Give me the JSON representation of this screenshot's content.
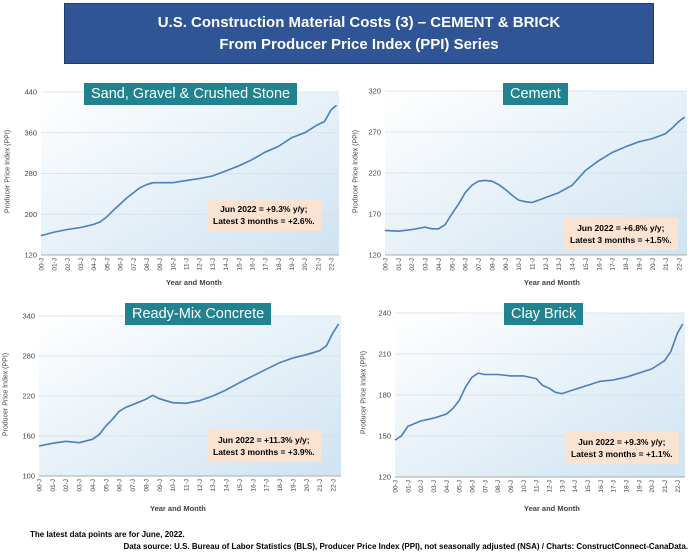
{
  "header": {
    "line1": "U.S. Construction Material Costs (3) – CEMENT & BRICK",
    "line2": "From Producer Price Index (PPI) Series"
  },
  "colors": {
    "banner": "#2f5597",
    "title_box": "#21838f",
    "note_box": "#fbe3d2",
    "line": "#4a7ebf"
  },
  "x_ticks": [
    "00-J",
    "01-J",
    "02-J",
    "03-J",
    "04-J",
    "05-J",
    "06-J",
    "07-J",
    "08-J",
    "09-J",
    "10-J",
    "11-J",
    "12-J",
    "13-J",
    "14-J",
    "15-J",
    "16-J",
    "17-J",
    "18-J",
    "19-J",
    "20-J",
    "21-J",
    "22-J"
  ],
  "chart_data": [
    {
      "type": "line",
      "title": "Sand, Gravel & Crushed Stone",
      "ylabel": "Producer Price Index (PPI)",
      "xlabel": "Year and Month",
      "ylim": [
        120,
        440
      ],
      "yticks": [
        "120",
        "200",
        "280",
        "360",
        "440"
      ],
      "grid": true,
      "note": [
        "Jun 2022 = +9.3% y/y;",
        "Latest 3 months = +2.6%."
      ],
      "x": [
        2000.0,
        2001.0,
        2002.0,
        2003.0,
        2004.0,
        2004.5,
        2005.0,
        2005.5,
        2006.0,
        2006.5,
        2007.0,
        2007.5,
        2008.0,
        2008.5,
        2009.0,
        2009.5,
        2010.0,
        2011.0,
        2012.0,
        2013.0,
        2014.0,
        2015.0,
        2016.0,
        2017.0,
        2018.0,
        2019.0,
        2020.0,
        2021.0,
        2021.5,
        2022.0,
        2022.42
      ],
      "values": [
        158,
        165,
        170,
        174,
        180,
        185,
        195,
        208,
        220,
        232,
        242,
        252,
        258,
        262,
        262,
        262,
        262,
        266,
        270,
        275,
        285,
        295,
        307,
        322,
        333,
        350,
        360,
        376,
        382,
        405,
        414
      ]
    },
    {
      "type": "line",
      "title": "Cement",
      "ylabel": "Producer Price Index (PPI)",
      "xlabel": "Year and Month",
      "ylim": [
        120,
        320
      ],
      "yticks": [
        "120",
        "170",
        "220",
        "270",
        "320"
      ],
      "grid": true,
      "note": [
        "Jun 2022 = +6.8% y/y;",
        "Latest 3 months = +1.5%."
      ],
      "x": [
        2000.0,
        2001.0,
        2002.0,
        2003.0,
        2003.5,
        2004.0,
        2004.5,
        2005.0,
        2005.5,
        2006.0,
        2006.5,
        2007.0,
        2007.5,
        2008.0,
        2008.5,
        2009.0,
        2009.5,
        2010.0,
        2010.5,
        2011.0,
        2011.5,
        2012.0,
        2013.0,
        2014.0,
        2015.0,
        2016.0,
        2017.0,
        2018.0,
        2019.0,
        2020.0,
        2021.0,
        2021.5,
        2022.0,
        2022.42
      ],
      "values": [
        150,
        149,
        151,
        154,
        152,
        152,
        157,
        170,
        182,
        196,
        205,
        210,
        211,
        210,
        206,
        200,
        193,
        187,
        185,
        184,
        187,
        190,
        196,
        205,
        223,
        235,
        245,
        252,
        258,
        262,
        268,
        275,
        283,
        288
      ]
    },
    {
      "type": "line",
      "title": "Ready-Mix Concrete",
      "ylabel": "Producer Price Index (PPI)",
      "xlabel": "Year and Month",
      "ylim": [
        100,
        340
      ],
      "yticks": [
        "100",
        "160",
        "220",
        "280",
        "340"
      ],
      "grid": true,
      "note": [
        "Jun 2022 = +11.3% y/y;",
        "Latest 3 months = +3.9%."
      ],
      "x": [
        2000.0,
        2001.0,
        2002.0,
        2003.0,
        2004.0,
        2004.5,
        2005.0,
        2005.5,
        2006.0,
        2006.5,
        2007.0,
        2007.5,
        2008.0,
        2008.5,
        2009.0,
        2009.5,
        2010.0,
        2011.0,
        2012.0,
        2013.0,
        2014.0,
        2015.0,
        2016.0,
        2017.0,
        2018.0,
        2019.0,
        2020.0,
        2021.0,
        2021.5,
        2022.0,
        2022.42
      ],
      "values": [
        145,
        149,
        152,
        150,
        155,
        162,
        175,
        185,
        197,
        203,
        207,
        211,
        215,
        221,
        216,
        213,
        210,
        209,
        213,
        220,
        229,
        240,
        250,
        260,
        270,
        277,
        282,
        288,
        295,
        315,
        328
      ]
    },
    {
      "type": "line",
      "title": "Clay Brick",
      "ylabel": "Producer Price Index (PPI)",
      "xlabel": "Year and Month",
      "ylim": [
        120,
        240
      ],
      "yticks": [
        "120",
        "150",
        "180",
        "210",
        "240"
      ],
      "grid": true,
      "note": [
        "Jun 2022 = +9.3% y/y;",
        "Latest 3 months = +1.1%."
      ],
      "x": [
        2000.0,
        2000.5,
        2001.0,
        2002.0,
        2003.0,
        2004.0,
        2004.5,
        2005.0,
        2005.5,
        2006.0,
        2006.5,
        2007.0,
        2008.0,
        2009.0,
        2010.0,
        2011.0,
        2011.5,
        2012.0,
        2012.5,
        2013.0,
        2014.0,
        2015.0,
        2016.0,
        2017.0,
        2018.0,
        2019.0,
        2020.0,
        2021.0,
        2021.5,
        2022.0,
        2022.42
      ],
      "values": [
        147,
        150,
        157,
        161,
        163,
        166,
        170,
        176,
        186,
        193,
        196,
        195,
        195,
        194,
        194,
        192,
        187,
        185,
        182,
        181,
        184,
        187,
        190,
        191,
        193,
        196,
        199,
        205,
        212,
        225,
        232
      ]
    }
  ],
  "footer": {
    "note": "The latest data points are for June, 2022.",
    "source": "Data source: U.S. Bureau of Labor Statistics (BLS), Producer Price Index (PPI), not seasonally adjusted (NSA) / Charts: ConstructConnect-CanaData."
  }
}
